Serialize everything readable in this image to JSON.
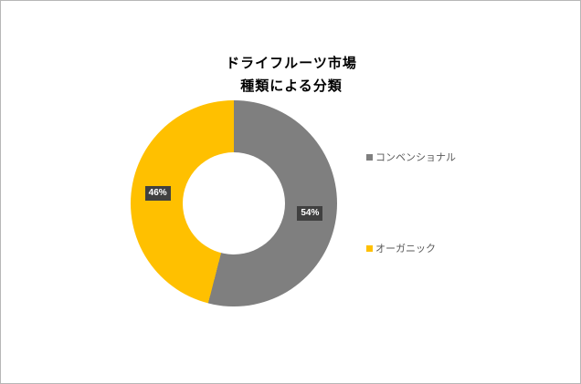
{
  "chart_data": {
    "type": "pie",
    "subtype": "donut",
    "title_lines": [
      "ドライフルーツ市場",
      "種類による分類"
    ],
    "title": "ドライフルーツ市場 種類による分類",
    "slices": [
      {
        "name": "コンベンショナル",
        "value": 54,
        "label": "54%",
        "color": "#7F7F7F"
      },
      {
        "name": "オーガニック",
        "value": 46,
        "label": "46%",
        "color": "#FFC000"
      }
    ],
    "legend_position": "right",
    "label_badge_color": "#404040",
    "label_text_color": "#FFFFFF",
    "legend_item_tops": [
      163,
      263
    ]
  }
}
